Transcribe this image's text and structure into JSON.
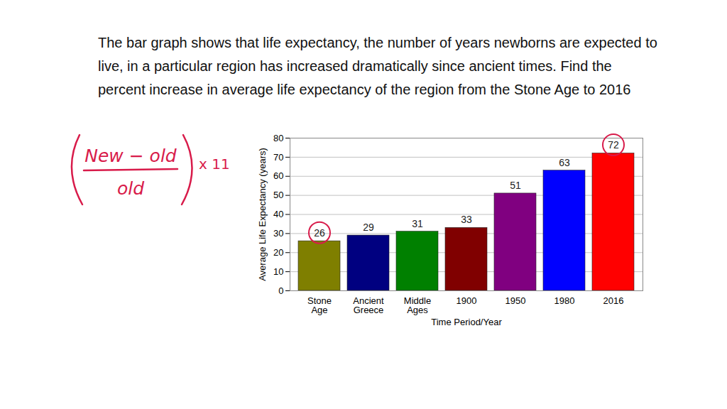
{
  "chart_data": {
    "type": "bar",
    "title": "The bar graph shows that life expectancy, the number of years newborns are expected to live, in a particular region has increased dramatically since ancient times. Find the percent increase in average life expectancy of the region from the Stone Age to 2016",
    "annotations": [
      "New − old",
      "old",
      "x 11"
    ],
    "xlabel": "Time Period/Year",
    "ylabel": "Average Life Expectancy (years)",
    "categories": [
      "Stone Age",
      "Ancient Greece",
      "Middle Ages",
      "1900",
      "1950",
      "1980",
      "2016"
    ],
    "values": [
      26,
      29,
      31,
      33,
      51,
      63,
      72
    ],
    "colors": [
      "#7f7f00",
      "#000080",
      "#008000",
      "#800000",
      "#800080",
      "#0000ff",
      "#ff0000"
    ],
    "ylim": [
      0,
      80
    ],
    "yticks": [
      0,
      10,
      20,
      30,
      40,
      50,
      60,
      70,
      80
    ],
    "grid": true,
    "data_labels": true
  }
}
